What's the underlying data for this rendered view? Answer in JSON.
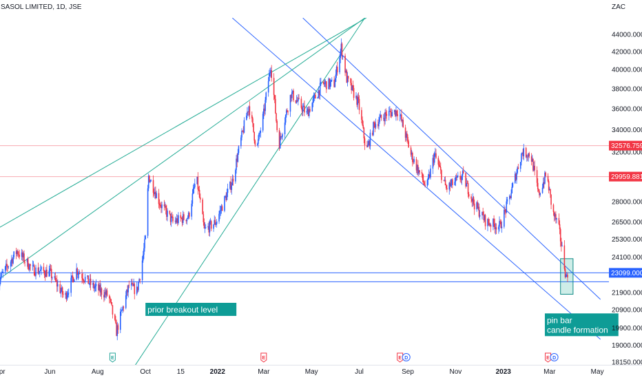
{
  "chart_data": {
    "type": "candlestick",
    "title": "SASOL LIMITED, 1D, JSE",
    "currency": "ZAC",
    "y_scale": "log",
    "ylim": [
      18150,
      46000
    ],
    "y_ticks": [
      "44000.0000",
      "42000.0000",
      "40000.0000",
      "38000.0000",
      "36000.0000",
      "34000.0000",
      "32000.0000",
      "28000.0000",
      "26500.0000",
      "25300.0000",
      "24100.0000",
      "21900.0000",
      "20900.0000",
      "19900.0000",
      "19000.0000",
      "18150.0000"
    ],
    "x_ticks": [
      {
        "label": "pr",
        "date": "2021-04-01"
      },
      {
        "label": "Jun",
        "date": "2021-06-01"
      },
      {
        "label": "Aug",
        "date": "2021-08-01"
      },
      {
        "label": "Oct",
        "date": "2021-10-01"
      },
      {
        "label": "15",
        "date": "2021-11-15"
      },
      {
        "label": "2022",
        "date": "2022-01-01",
        "bold": true
      },
      {
        "label": "Mar",
        "date": "2022-03-01"
      },
      {
        "label": "May",
        "date": "2022-05-01"
      },
      {
        "label": "Jul",
        "date": "2022-07-01"
      },
      {
        "label": "Sep",
        "date": "2022-09-01"
      },
      {
        "label": "Nov",
        "date": "2022-11-01"
      },
      {
        "label": "2023",
        "date": "2023-01-01",
        "bold": true
      },
      {
        "label": "Mar",
        "date": "2023-03-01"
      },
      {
        "label": "May",
        "date": "2023-05-01"
      }
    ],
    "price_path": [
      {
        "date": "2021-03-25",
        "price": 22400
      },
      {
        "date": "2021-04-20",
        "price": 24500
      },
      {
        "date": "2021-05-10",
        "price": 23300
      },
      {
        "date": "2021-06-01",
        "price": 23100
      },
      {
        "date": "2021-06-20",
        "price": 21600
      },
      {
        "date": "2021-07-05",
        "price": 23300
      },
      {
        "date": "2021-07-25",
        "price": 22300
      },
      {
        "date": "2021-08-15",
        "price": 21700
      },
      {
        "date": "2021-08-25",
        "price": 19700
      },
      {
        "date": "2021-09-10",
        "price": 22300
      },
      {
        "date": "2021-09-20",
        "price": 22000
      },
      {
        "date": "2021-09-25",
        "price": 23200
      },
      {
        "date": "2021-10-01",
        "price": 25300
      },
      {
        "date": "2021-10-05",
        "price": 30000
      },
      {
        "date": "2021-10-20",
        "price": 27800
      },
      {
        "date": "2021-11-05",
        "price": 26500
      },
      {
        "date": "2021-11-25",
        "price": 26900
      },
      {
        "date": "2021-12-05",
        "price": 29900
      },
      {
        "date": "2021-12-15",
        "price": 25900
      },
      {
        "date": "2021-12-30",
        "price": 26500
      },
      {
        "date": "2022-01-20",
        "price": 29600
      },
      {
        "date": "2022-02-10",
        "price": 36300
      },
      {
        "date": "2022-02-20",
        "price": 32200
      },
      {
        "date": "2022-03-01",
        "price": 35500
      },
      {
        "date": "2022-03-10",
        "price": 40500
      },
      {
        "date": "2022-03-20",
        "price": 32500
      },
      {
        "date": "2022-04-05",
        "price": 37500
      },
      {
        "date": "2022-04-25",
        "price": 35500
      },
      {
        "date": "2022-05-15",
        "price": 38500
      },
      {
        "date": "2022-05-30",
        "price": 38500
      },
      {
        "date": "2022-06-08",
        "price": 42500
      },
      {
        "date": "2022-06-15",
        "price": 39000
      },
      {
        "date": "2022-06-30",
        "price": 36500
      },
      {
        "date": "2022-07-10",
        "price": 32000
      },
      {
        "date": "2022-07-20",
        "price": 34500
      },
      {
        "date": "2022-08-05",
        "price": 35500
      },
      {
        "date": "2022-08-20",
        "price": 35800
      },
      {
        "date": "2022-09-05",
        "price": 31800
      },
      {
        "date": "2022-09-25",
        "price": 29000
      },
      {
        "date": "2022-10-05",
        "price": 31800
      },
      {
        "date": "2022-10-20",
        "price": 29000
      },
      {
        "date": "2022-11-10",
        "price": 30000
      },
      {
        "date": "2022-11-25",
        "price": 27800
      },
      {
        "date": "2022-12-10",
        "price": 26500
      },
      {
        "date": "2022-12-28",
        "price": 26200
      },
      {
        "date": "2023-01-10",
        "price": 28500
      },
      {
        "date": "2023-01-25",
        "price": 32000
      },
      {
        "date": "2023-02-05",
        "price": 31800
      },
      {
        "date": "2023-02-15",
        "price": 28500
      },
      {
        "date": "2023-02-25",
        "price": 30200
      },
      {
        "date": "2023-03-05",
        "price": 27200
      },
      {
        "date": "2023-03-12",
        "price": 26300
      },
      {
        "date": "2023-03-18",
        "price": 24300
      },
      {
        "date": "2023-03-22",
        "price": 22800
      },
      {
        "date": "2023-03-25",
        "price": 23300
      }
    ],
    "price_labels": [
      {
        "text": "32576.7592",
        "value": 32576.7592,
        "color": "#f23645"
      },
      {
        "text": "29959.8813",
        "value": 29959.8813,
        "color": "#f23645"
      },
      {
        "text": "23099.0000",
        "value": 23099,
        "color": "#2962ff"
      }
    ],
    "horizontal_lines": [
      {
        "value": 32576.7592,
        "color": "#f7a9b0"
      },
      {
        "value": 29959.8813,
        "color": "#f7a9b0"
      },
      {
        "value": 23099,
        "color": "#2962ff"
      },
      {
        "value": 22550,
        "color": "#2962ff"
      }
    ],
    "trend_lines": [
      {
        "from": {
          "date": "2022-01-20",
          "price": 46000
        },
        "to": {
          "date": "2023-05-05",
          "price": 19300
        },
        "color": "#2962ff"
      },
      {
        "from": {
          "date": "2022-04-20",
          "price": 46000
        },
        "to": {
          "date": "2023-05-05",
          "price": 21500
        },
        "color": "#2962ff"
      },
      {
        "from": {
          "date": "2021-03-25",
          "price": 26000
        },
        "to": {
          "date": "2022-07-10",
          "price": 46000
        },
        "color": "#22ab94"
      },
      {
        "from": {
          "date": "2021-03-25",
          "price": 22600
        },
        "to": {
          "date": "2022-07-08",
          "price": 46000
        },
        "color": "#22ab94"
      },
      {
        "from": {
          "date": "2021-09-18",
          "price": 18000
        },
        "to": {
          "date": "2022-07-08",
          "price": 46000
        },
        "color": "#22ab94"
      }
    ],
    "annotations": [
      {
        "text": "prior breakout level",
        "anchor": {
          "date": "2021-10-01",
          "price": 21300
        }
      },
      {
        "text": "pin bar\ncandle formation",
        "anchor": {
          "date": "2023-02-23",
          "price": 20700
        }
      }
    ],
    "highlight_box": {
      "from": {
        "date": "2023-03-15",
        "price": 24000
      },
      "to": {
        "date": "2023-03-31",
        "price": 21800
      }
    },
    "events": [
      {
        "type": "E",
        "date": "2021-08-20",
        "color": "#26a69a"
      },
      {
        "type": "E",
        "date": "2022-03-01",
        "color": "#f23645"
      },
      {
        "type": "E",
        "date": "2022-08-22",
        "color": "#f23645"
      },
      {
        "type": "D",
        "date": "2022-08-30",
        "color": "#2962ff"
      },
      {
        "type": "E",
        "date": "2023-02-27",
        "color": "#f23645"
      },
      {
        "type": "D",
        "date": "2023-03-07",
        "color": "#2962ff"
      }
    ],
    "up_color": "#2962ff",
    "down_color": "#f23645"
  }
}
